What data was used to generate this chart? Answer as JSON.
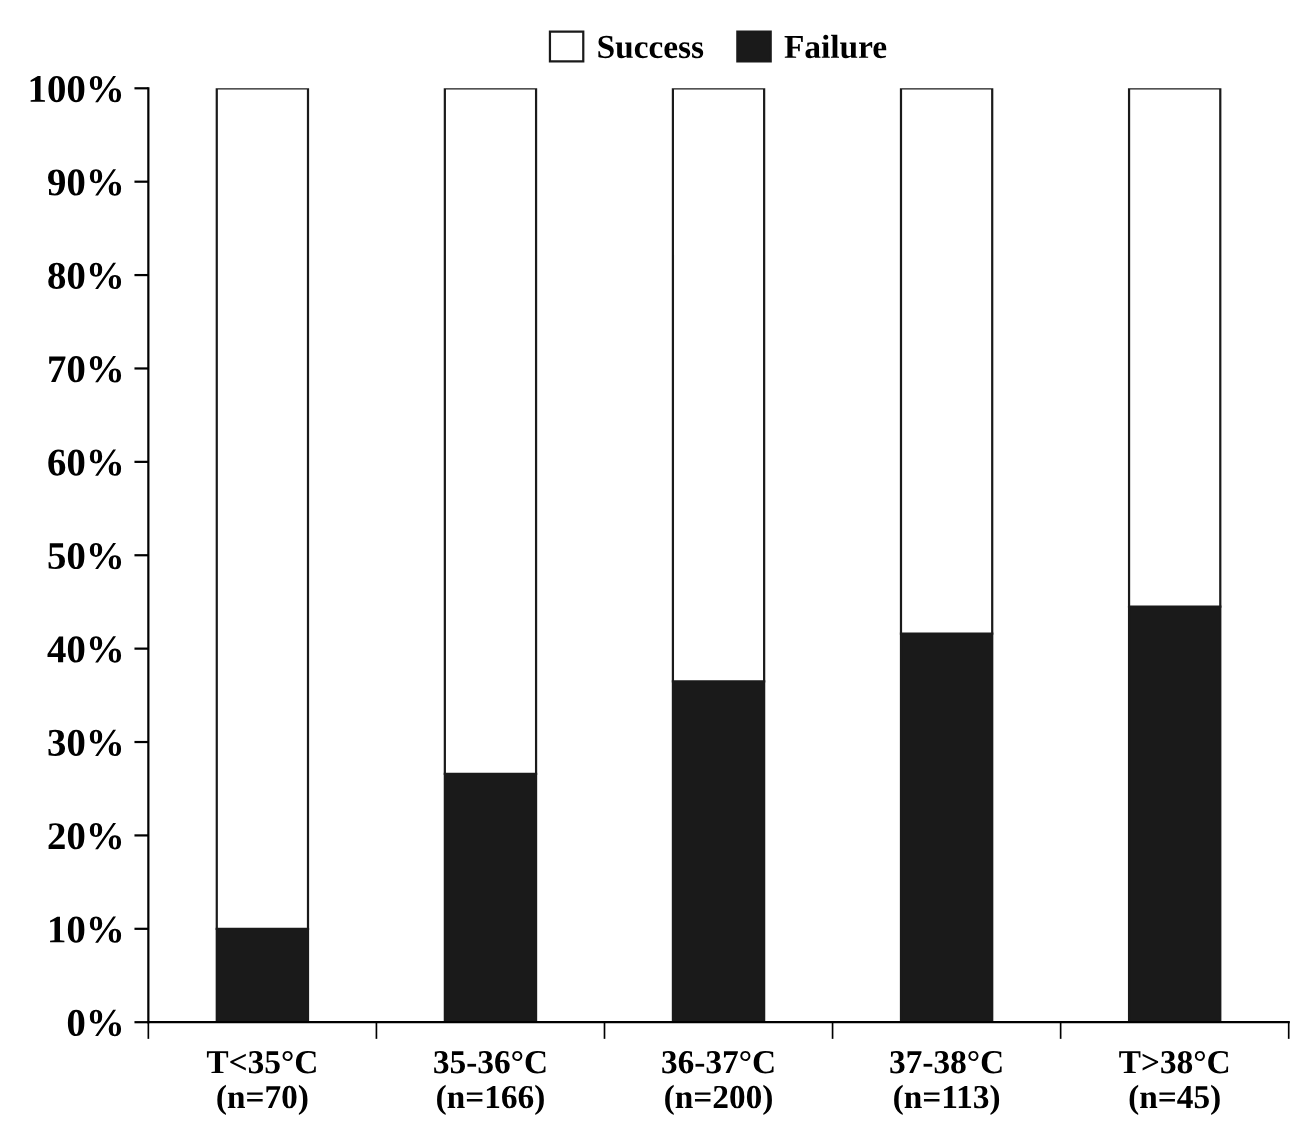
{
  "chart_data": {
    "type": "bar",
    "stacked": true,
    "categories": [
      "T<35°C\n(n=70)",
      "35-36°C\n(n=166)",
      "36-37°C\n(n=200)",
      "37-38°C\n(n=113)",
      "T>38°C\n(n=45)"
    ],
    "series": [
      {
        "name": "Failure",
        "color": "#1a1a1a",
        "values": [
          10,
          26.6,
          36.5,
          41.6,
          44.5
        ]
      },
      {
        "name": "Success",
        "color": "#ffffff",
        "values": [
          90,
          73.4,
          63.5,
          58.4,
          55.5
        ]
      }
    ],
    "ylim": [
      0,
      100
    ],
    "yticks": [
      {
        "value": 0,
        "label": "0%"
      },
      {
        "value": 10,
        "label": "10%"
      },
      {
        "value": 20,
        "label": "20%"
      },
      {
        "value": 30,
        "label": "30%"
      },
      {
        "value": 40,
        "label": "40%"
      },
      {
        "value": 50,
        "label": "50%"
      },
      {
        "value": 60,
        "label": "60%"
      },
      {
        "value": 70,
        "label": "70%"
      },
      {
        "value": 80,
        "label": "80%"
      },
      {
        "value": 90,
        "label": "90%"
      },
      {
        "value": 100,
        "label": "100%"
      }
    ],
    "grid": false,
    "legend": "top"
  }
}
